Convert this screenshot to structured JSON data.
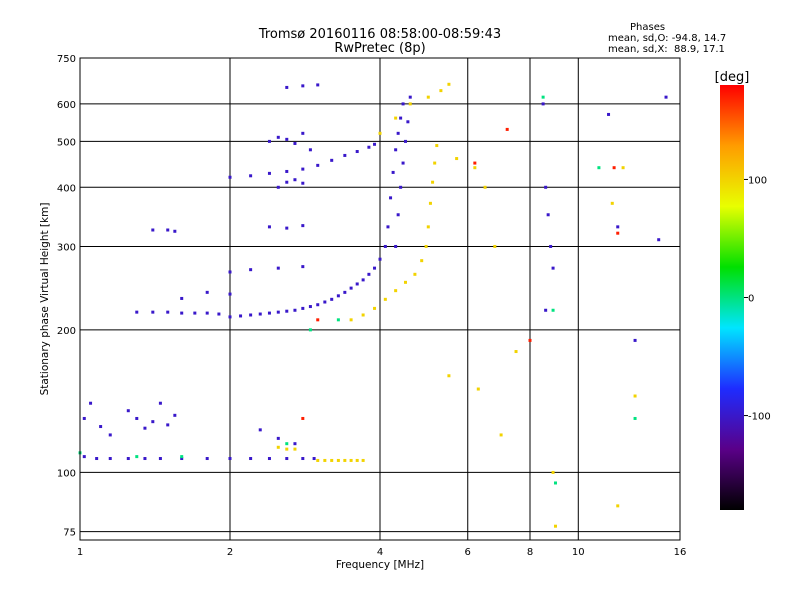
{
  "header": {
    "title_line1": "Tromsø 20160116 08:58:00-08:59:43",
    "title_line2": "RwPretec (8p)",
    "stats_heading": "Phases",
    "stats_o": "mean, sd,O: -94.8, 14.7",
    "stats_x": "mean, sd,X:  88.9, 17.1"
  },
  "chart_data": {
    "type": "scatter",
    "title": "Tromsø 20160116 08:58:00-08:59:43",
    "subtitle": "RwPretec (8p)",
    "xlabel": "Frequency [MHz]",
    "ylabel": "Stationary phase Virtual Height [km]",
    "xscale": "log",
    "yscale": "log",
    "xlim": [
      1,
      16
    ],
    "ylim": [
      72,
      750
    ],
    "xticks": [
      1,
      2,
      4,
      6,
      8,
      10,
      16
    ],
    "xtick_labels": [
      "1",
      "2",
      "4",
      "6",
      "8",
      "10",
      "16"
    ],
    "yticks": [
      75,
      100,
      200,
      300,
      400,
      500,
      600,
      750
    ],
    "ytick_labels": [
      "75",
      "100",
      "200",
      "300",
      "400",
      "500",
      "600",
      "750"
    ],
    "grid": true,
    "colorbar": {
      "label": "[deg]",
      "range": [
        -180,
        180
      ],
      "ticks": [
        100,
        0,
        -100
      ],
      "tick_labels": [
        "100",
        "0",
        "-100"
      ],
      "colors": [
        "#000000",
        "#5a0088",
        "#1e2cff",
        "#00e5ff",
        "#00e000",
        "#e8ff00",
        "#ff9c00",
        "#ff0000"
      ]
    },
    "series": [
      {
        "phase_deg": -100,
        "points": [
          [
            1.02,
            108
          ],
          [
            1.08,
            107
          ],
          [
            1.15,
            107
          ],
          [
            1.25,
            107
          ],
          [
            1.35,
            107
          ],
          [
            1.45,
            107
          ],
          [
            1.6,
            107
          ],
          [
            1.8,
            107
          ],
          [
            2.0,
            107
          ],
          [
            2.2,
            107
          ],
          [
            2.4,
            107
          ],
          [
            2.6,
            107
          ],
          [
            2.8,
            107
          ],
          [
            2.95,
            107
          ],
          [
            1.02,
            130
          ],
          [
            1.05,
            140
          ],
          [
            1.1,
            125
          ],
          [
            1.15,
            120
          ],
          [
            1.25,
            135
          ],
          [
            1.3,
            130
          ],
          [
            1.4,
            128
          ],
          [
            1.45,
            140
          ],
          [
            1.5,
            126
          ],
          [
            1.55,
            132
          ],
          [
            1.35,
            124
          ],
          [
            1.3,
            218
          ],
          [
            1.4,
            218
          ],
          [
            1.5,
            218
          ],
          [
            1.6,
            217
          ],
          [
            1.7,
            217
          ],
          [
            1.8,
            217
          ],
          [
            1.9,
            216
          ],
          [
            2.0,
            213
          ],
          [
            2.1,
            214
          ],
          [
            2.2,
            215
          ],
          [
            2.3,
            216
          ],
          [
            2.4,
            217
          ],
          [
            2.5,
            218
          ],
          [
            2.6,
            219
          ],
          [
            2.7,
            220
          ],
          [
            2.8,
            222
          ],
          [
            2.9,
            224
          ],
          [
            3.0,
            226
          ],
          [
            3.1,
            229
          ],
          [
            3.2,
            232
          ],
          [
            3.3,
            236
          ],
          [
            3.4,
            240
          ],
          [
            3.5,
            245
          ],
          [
            3.6,
            250
          ],
          [
            3.7,
            255
          ],
          [
            3.8,
            262
          ],
          [
            3.9,
            270
          ],
          [
            4.0,
            282
          ],
          [
            4.1,
            300
          ],
          [
            4.15,
            330
          ],
          [
            4.2,
            380
          ],
          [
            4.25,
            430
          ],
          [
            4.3,
            480
          ],
          [
            4.35,
            520
          ],
          [
            4.4,
            560
          ],
          [
            4.45,
            600
          ],
          [
            4.3,
            300
          ],
          [
            4.35,
            350
          ],
          [
            4.4,
            400
          ],
          [
            4.45,
            450
          ],
          [
            4.5,
            500
          ],
          [
            4.55,
            550
          ],
          [
            4.6,
            620
          ],
          [
            2.0,
            420
          ],
          [
            2.2,
            423
          ],
          [
            2.4,
            428
          ],
          [
            2.6,
            432
          ],
          [
            2.8,
            437
          ],
          [
            3.0,
            445
          ],
          [
            3.2,
            456
          ],
          [
            3.4,
            467
          ],
          [
            3.6,
            476
          ],
          [
            3.8,
            486
          ],
          [
            3.9,
            493
          ],
          [
            1.4,
            325
          ],
          [
            1.5,
            325
          ],
          [
            1.55,
            323
          ],
          [
            2.6,
            650
          ],
          [
            2.8,
            655
          ],
          [
            3.0,
            658
          ],
          [
            2.4,
            500
          ],
          [
            2.5,
            510
          ],
          [
            2.6,
            505
          ],
          [
            2.7,
            495
          ],
          [
            2.8,
            520
          ],
          [
            2.9,
            480
          ],
          [
            2.5,
            400
          ],
          [
            2.6,
            410
          ],
          [
            2.7,
            415
          ],
          [
            2.8,
            408
          ],
          [
            2.4,
            330
          ],
          [
            2.6,
            328
          ],
          [
            2.8,
            332
          ],
          [
            2.0,
            265
          ],
          [
            2.2,
            268
          ],
          [
            2.5,
            270
          ],
          [
            2.8,
            272
          ],
          [
            1.6,
            233
          ],
          [
            1.8,
            240
          ],
          [
            2.0,
            238
          ],
          [
            2.3,
            123
          ],
          [
            2.5,
            118
          ],
          [
            2.7,
            115
          ],
          [
            8.5,
            600
          ],
          [
            8.6,
            400
          ],
          [
            8.7,
            350
          ],
          [
            8.8,
            300
          ],
          [
            8.9,
            270
          ],
          [
            8.6,
            220
          ],
          [
            11.5,
            570
          ],
          [
            12.0,
            330
          ],
          [
            13.0,
            190
          ],
          [
            14.5,
            310
          ],
          [
            15.0,
            620
          ]
        ]
      },
      {
        "phase_deg": 100,
        "points": [
          [
            3.0,
            106
          ],
          [
            3.1,
            106
          ],
          [
            3.2,
            106
          ],
          [
            3.3,
            106
          ],
          [
            3.4,
            106
          ],
          [
            3.5,
            106
          ],
          [
            3.6,
            106
          ],
          [
            3.7,
            106
          ],
          [
            2.5,
            113
          ],
          [
            2.6,
            112
          ],
          [
            2.7,
            112
          ],
          [
            3.5,
            210
          ],
          [
            3.7,
            215
          ],
          [
            3.9,
            222
          ],
          [
            4.1,
            232
          ],
          [
            4.3,
            242
          ],
          [
            4.5,
            252
          ],
          [
            4.7,
            262
          ],
          [
            4.85,
            280
          ],
          [
            4.95,
            300
          ],
          [
            5.0,
            330
          ],
          [
            5.05,
            370
          ],
          [
            5.1,
            410
          ],
          [
            5.15,
            450
          ],
          [
            5.2,
            490
          ],
          [
            4.0,
            520
          ],
          [
            4.3,
            560
          ],
          [
            4.6,
            600
          ],
          [
            5.0,
            620
          ],
          [
            5.3,
            640
          ],
          [
            5.5,
            660
          ],
          [
            5.7,
            460
          ],
          [
            6.2,
            440
          ],
          [
            6.5,
            400
          ],
          [
            6.8,
            300
          ],
          [
            5.5,
            160
          ],
          [
            6.3,
            150
          ],
          [
            7.0,
            120
          ],
          [
            7.5,
            180
          ],
          [
            8.9,
            100
          ],
          [
            9.0,
            77
          ],
          [
            11.7,
            370
          ],
          [
            12.3,
            440
          ],
          [
            12.0,
            85
          ],
          [
            13.0,
            145
          ]
        ]
      },
      {
        "phase_deg": 0,
        "points": [
          [
            1.0,
            110
          ],
          [
            1.3,
            108
          ],
          [
            1.6,
            108
          ],
          [
            2.6,
            115
          ],
          [
            2.9,
            200
          ],
          [
            3.3,
            210
          ],
          [
            8.5,
            620
          ],
          [
            8.9,
            220
          ],
          [
            9.0,
            95
          ],
          [
            11.0,
            440
          ],
          [
            13.0,
            130
          ]
        ]
      },
      {
        "phase_deg": 170,
        "points": [
          [
            2.8,
            130
          ],
          [
            3.0,
            210
          ],
          [
            6.2,
            450
          ],
          [
            7.2,
            530
          ],
          [
            8.0,
            190
          ],
          [
            11.8,
            440
          ],
          [
            12.0,
            320
          ]
        ]
      }
    ]
  }
}
